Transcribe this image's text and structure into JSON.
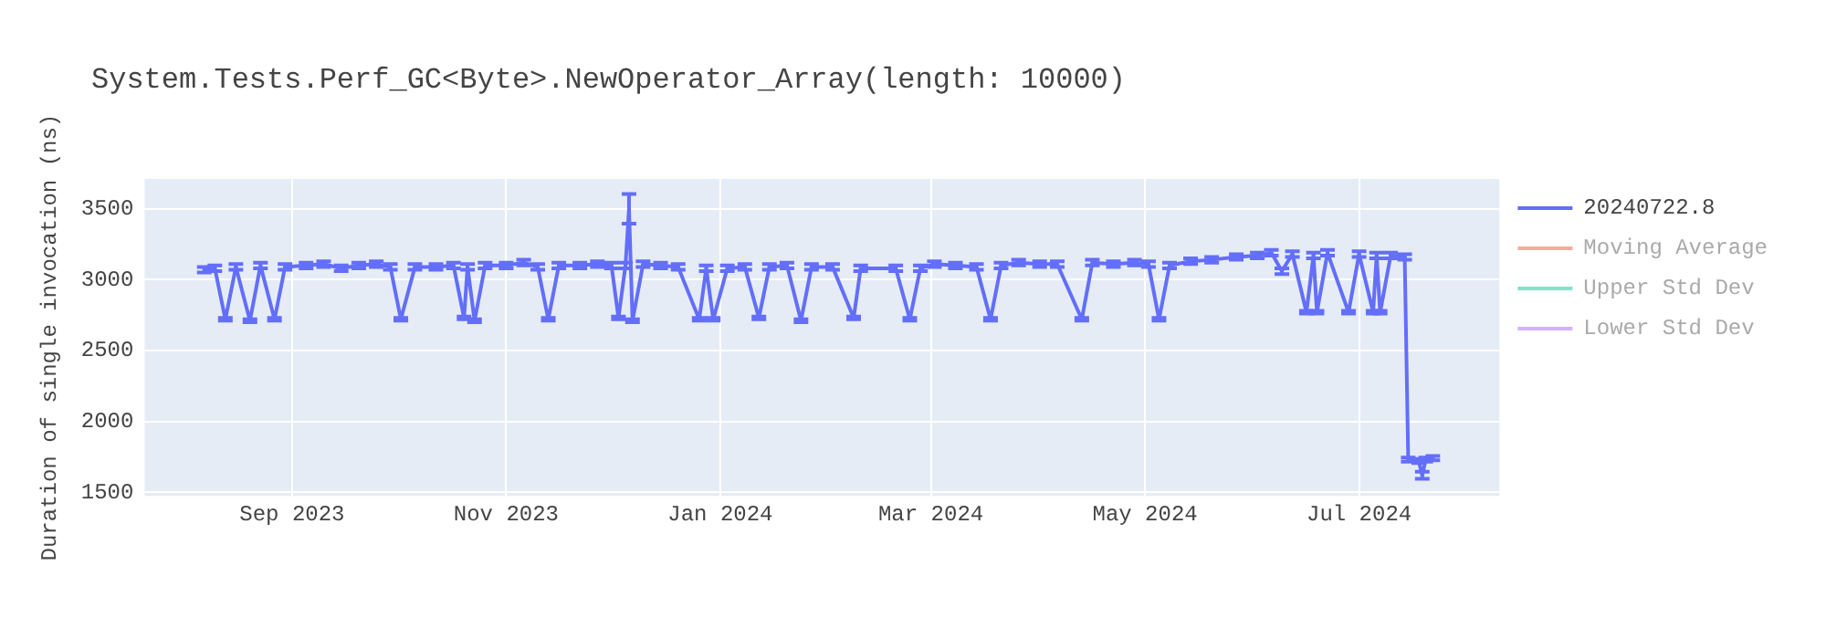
{
  "chart_data": {
    "type": "line",
    "title": "System.Tests.Perf_GC<Byte>.NewOperator_Array(length: 10000)",
    "ylabel": "Duration of single invocation (ns)",
    "x": [
      "2023-08-07",
      "2023-08-10",
      "2023-08-13",
      "2023-08-16",
      "2023-08-20",
      "2023-08-23",
      "2023-08-27",
      "2023-08-30",
      "2023-09-05",
      "2023-09-10",
      "2023-09-15",
      "2023-09-20",
      "2023-09-25",
      "2023-09-29",
      "2023-10-02",
      "2023-10-06",
      "2023-10-12",
      "2023-10-17",
      "2023-10-20",
      "2023-10-21",
      "2023-10-23",
      "2023-10-26",
      "2023-11-01",
      "2023-11-06",
      "2023-11-10",
      "2023-11-13",
      "2023-11-16",
      "2023-11-22",
      "2023-11-27",
      "2023-12-01",
      "2023-12-03",
      "2023-12-05",
      "2023-12-06",
      "2023-12-07",
      "2023-12-10",
      "2023-12-15",
      "2023-12-20",
      "2023-12-26",
      "2023-12-28",
      "2023-12-30",
      "2024-01-03",
      "2024-01-08",
      "2024-01-12",
      "2024-01-15",
      "2024-01-20",
      "2024-01-24",
      "2024-01-27",
      "2024-02-02",
      "2024-02-08",
      "2024-02-10",
      "2024-02-20",
      "2024-02-24",
      "2024-02-27",
      "2024-03-02",
      "2024-03-08",
      "2024-03-14",
      "2024-03-18",
      "2024-03-21",
      "2024-03-26",
      "2024-04-01",
      "2024-04-06",
      "2024-04-13",
      "2024-04-16",
      "2024-04-22",
      "2024-04-28",
      "2024-05-02",
      "2024-05-05",
      "2024-05-08",
      "2024-05-14",
      "2024-05-20",
      "2024-05-27",
      "2024-06-02",
      "2024-06-06",
      "2024-06-09",
      "2024-06-12",
      "2024-06-16",
      "2024-06-18",
      "2024-06-19",
      "2024-06-22",
      "2024-06-28",
      "2024-07-01",
      "2024-07-05",
      "2024-07-06",
      "2024-07-07",
      "2024-07-10",
      "2024-07-14",
      "2024-07-15",
      "2024-07-18",
      "2024-07-19",
      "2024-07-20",
      "2024-07-22"
    ],
    "series": [
      {
        "name": "20240722.8",
        "color": "#636efa",
        "values": [
          3070,
          3080,
          2720,
          3090,
          2710,
          3100,
          2720,
          3090,
          3100,
          3110,
          3080,
          3100,
          3110,
          3090,
          2720,
          3090,
          3090,
          3100,
          2730,
          3090,
          2710,
          3100,
          3100,
          3120,
          3090,
          2720,
          3100,
          3100,
          3110,
          3100,
          2730,
          3100,
          3500,
          2710,
          3110,
          3100,
          3090,
          2720,
          3080,
          2720,
          3080,
          3090,
          2730,
          3090,
          3100,
          2710,
          3090,
          3090,
          2730,
          3080,
          3080,
          2720,
          3080,
          3110,
          3100,
          3090,
          2720,
          3100,
          3120,
          3110,
          3110,
          2720,
          3120,
          3110,
          3120,
          3110,
          2720,
          3100,
          3130,
          3140,
          3160,
          3170,
          3190,
          3060,
          3180,
          2770,
          3170,
          2770,
          3190,
          2770,
          3180,
          2770,
          3170,
          2770,
          3170,
          3160,
          1730,
          1720,
          1620,
          1730,
          1740
        ],
        "errors": [
          20,
          20,
          10,
          20,
          10,
          20,
          10,
          20,
          20,
          20,
          20,
          20,
          20,
          20,
          10,
          20,
          20,
          20,
          10,
          20,
          10,
          20,
          20,
          20,
          20,
          10,
          20,
          20,
          20,
          20,
          10,
          20,
          105,
          10,
          20,
          20,
          20,
          10,
          20,
          10,
          20,
          20,
          10,
          20,
          20,
          10,
          20,
          20,
          10,
          20,
          20,
          10,
          20,
          20,
          20,
          20,
          10,
          20,
          20,
          20,
          20,
          10,
          20,
          20,
          20,
          20,
          10,
          20,
          20,
          20,
          20,
          20,
          20,
          20,
          20,
          10,
          20,
          10,
          20,
          10,
          20,
          10,
          20,
          10,
          20,
          20,
          15,
          15,
          25,
          15,
          15
        ]
      },
      {
        "name": "Moving Average",
        "color": "#ef553b",
        "values": [
          null,
          null,
          null,
          null,
          null,
          null,
          null,
          null,
          null,
          null,
          null,
          null,
          null,
          null,
          null,
          null,
          null,
          null,
          null,
          null,
          null,
          null,
          null,
          null,
          null,
          null,
          null,
          null,
          null,
          null,
          null,
          null,
          null,
          null,
          null,
          null,
          null,
          null,
          null,
          null,
          null,
          null,
          null,
          null,
          null,
          null,
          null,
          null,
          null,
          null,
          null,
          null,
          null,
          null,
          null,
          null,
          null,
          null,
          null,
          null,
          null,
          null,
          null,
          null,
          null,
          null,
          null,
          null,
          null,
          null,
          null,
          null,
          null,
          null,
          null,
          null,
          null,
          null,
          null,
          null,
          null,
          null,
          null,
          null,
          null,
          null,
          null,
          null,
          null,
          null,
          null
        ]
      },
      {
        "name": "Upper Std Dev",
        "color": "#00cc96",
        "values": [
          null,
          null,
          null,
          null,
          null,
          null,
          null,
          null,
          null,
          null,
          null,
          null,
          null,
          null,
          null,
          null,
          null,
          null,
          null,
          null,
          null,
          null,
          null,
          null,
          null,
          null,
          null,
          null,
          null,
          null,
          null,
          null,
          null,
          null,
          null,
          null,
          null,
          null,
          null,
          null,
          null,
          null,
          null,
          null,
          null,
          null,
          null,
          null,
          null,
          null,
          null,
          null,
          null,
          null,
          null,
          null,
          null,
          null,
          null,
          null,
          null,
          null,
          null,
          null,
          null,
          null,
          null,
          null,
          null,
          null,
          null,
          null,
          null,
          null,
          null,
          null,
          null,
          null,
          null,
          null,
          null,
          null,
          null,
          null,
          null,
          null,
          null,
          null,
          null,
          null,
          null
        ]
      },
      {
        "name": "Lower Std Dev",
        "color": "#ab63fa",
        "values": [
          null,
          null,
          null,
          null,
          null,
          null,
          null,
          null,
          null,
          null,
          null,
          null,
          null,
          null,
          null,
          null,
          null,
          null,
          null,
          null,
          null,
          null,
          null,
          null,
          null,
          null,
          null,
          null,
          null,
          null,
          null,
          null,
          null,
          null,
          null,
          null,
          null,
          null,
          null,
          null,
          null,
          null,
          null,
          null,
          null,
          null,
          null,
          null,
          null,
          null,
          null,
          null,
          null,
          null,
          null,
          null,
          null,
          null,
          null,
          null,
          null,
          null,
          null,
          null,
          null,
          null,
          null,
          null,
          null,
          null,
          null,
          null,
          null,
          null,
          null,
          null,
          null,
          null,
          null,
          null,
          null,
          null,
          null,
          null,
          null,
          null,
          null,
          null,
          null,
          null,
          null
        ]
      }
    ],
    "xlim": [
      "2023-07-21",
      "2024-08-10"
    ],
    "xticks": [
      {
        "value": "2023-09-01",
        "label": "Sep 2023"
      },
      {
        "value": "2023-11-01",
        "label": "Nov 2023"
      },
      {
        "value": "2024-01-01",
        "label": "Jan 2024"
      },
      {
        "value": "2024-03-01",
        "label": "Mar 2024"
      },
      {
        "value": "2024-05-01",
        "label": "May 2024"
      },
      {
        "value": "2024-07-01",
        "label": "Jul 2024"
      }
    ],
    "ylim": [
      1474,
      3711
    ],
    "yticks": [
      1500,
      2000,
      2500,
      3000,
      3500
    ],
    "grid": true,
    "legend": "top right",
    "marker": "none",
    "line_style": "solid"
  }
}
